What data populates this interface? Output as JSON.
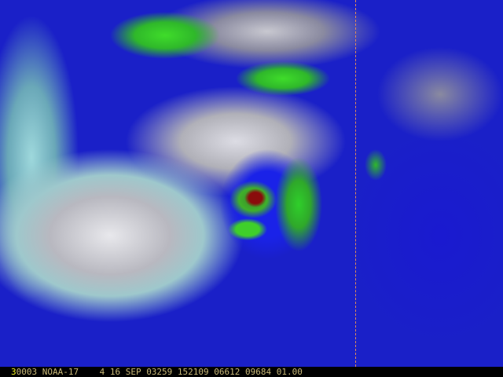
{
  "image": {
    "subject": "satellite-infrared-hurricane",
    "colors": {
      "cloud_tops": "#e8e8ec",
      "ocean": "#1a20c8",
      "convection": "#3fdc2a",
      "core": "#8a0c0c",
      "gridline": "#e08a5a"
    }
  },
  "caption": {
    "channel": "3",
    "text": "0003 NOAA-17    4 16 SEP 03259 152109 06612 09684 01.00",
    "channel_color": "#f0f020",
    "text_color": "#c8b878"
  }
}
